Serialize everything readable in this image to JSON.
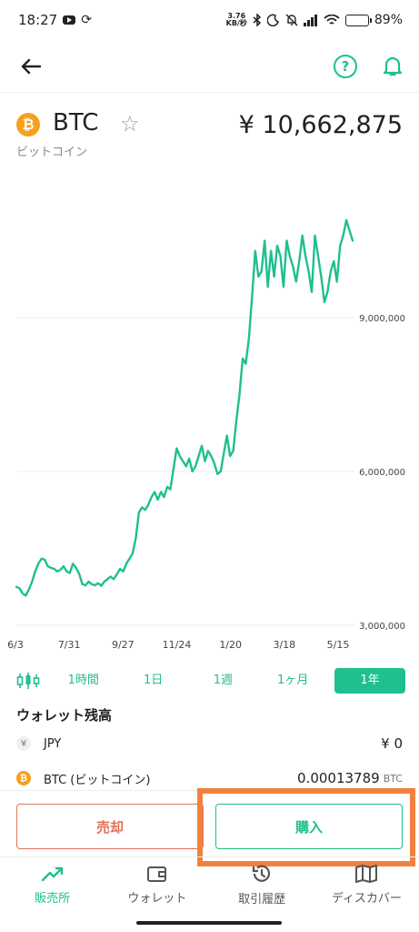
{
  "status_bar": {
    "time": "18:27",
    "net_speed_value": "3.76",
    "net_speed_unit": "KB/秒",
    "battery": "89%",
    "battery_level": 0.89
  },
  "header": {
    "back_icon": "arrow-left-icon",
    "help_icon": "help-circle-icon",
    "help_glyph": "?",
    "bell_icon": "bell-icon"
  },
  "coin": {
    "logo_glyph": "₿",
    "symbol": "BTC",
    "name": "ビットコイン",
    "price": "¥ 10,662,875",
    "star_glyph": "☆"
  },
  "chart_data": {
    "type": "line",
    "x_tick_labels": [
      "6/3",
      "7/31",
      "9/27",
      "11/24",
      "1/20",
      "3/18",
      "5/15"
    ],
    "y_tick_values": [
      3000000,
      6000000,
      9000000
    ],
    "y_tick_labels": [
      "3,000,000",
      "6,000,000",
      "9,000,000"
    ],
    "ylim": [
      3000000,
      11200000
    ],
    "line_color": "#1fbf8f",
    "grid": true,
    "values": [
      3750000,
      3720000,
      3620000,
      3580000,
      3700000,
      3850000,
      4050000,
      4200000,
      4300000,
      4280000,
      4150000,
      4120000,
      4100000,
      4050000,
      4080000,
      4150000,
      4050000,
      4020000,
      4200000,
      4120000,
      4000000,
      3800000,
      3780000,
      3850000,
      3800000,
      3780000,
      3820000,
      3770000,
      3850000,
      3900000,
      3950000,
      3900000,
      4000000,
      4100000,
      4050000,
      4200000,
      4300000,
      4400000,
      4700000,
      5200000,
      5300000,
      5250000,
      5350000,
      5500000,
      5600000,
      5450000,
      5600000,
      5500000,
      5700000,
      5650000,
      6050000,
      6450000,
      6300000,
      6200000,
      6100000,
      6250000,
      6000000,
      6100000,
      6300000,
      6500000,
      6200000,
      6400000,
      6300000,
      6150000,
      5950000,
      6000000,
      6350000,
      6700000,
      6300000,
      6400000,
      7000000,
      7500000,
      8200000,
      8100000,
      8600000,
      9400000,
      10300000,
      9800000,
      9900000,
      10500000,
      9600000,
      10300000,
      9800000,
      10400000,
      10200000,
      9600000,
      10500000,
      10200000,
      10000000,
      9700000,
      10100000,
      10600000,
      10200000,
      9900000,
      9500000,
      10600000,
      10200000,
      9800000,
      9300000,
      9500000,
      9900000,
      10100000,
      9700000,
      10400000,
      10600000,
      10900000,
      10700000,
      10500000
    ]
  },
  "periods": {
    "candle_icon": "candlestick-icon",
    "items": [
      "1時間",
      "1日",
      "1週",
      "1ヶ月",
      "1年"
    ],
    "active_index": 4
  },
  "wallet": {
    "title": "ウォレット残高",
    "rows": [
      {
        "icon_glyph": "¥",
        "label": "JPY",
        "value": "¥ 0",
        "unit": ""
      },
      {
        "icon_glyph": "₿",
        "label": "BTC (ビットコイン)",
        "value": "0.00013789",
        "unit": "BTC"
      }
    ]
  },
  "actions": {
    "sell_label": "売却",
    "buy_label": "購入",
    "highlight_color": "#f2813f",
    "sell_color": "#e0735a"
  },
  "bottom_nav": {
    "items": [
      {
        "label": "販売所",
        "icon": "trending-up-icon"
      },
      {
        "label": "ウォレット",
        "icon": "wallet-icon"
      },
      {
        "label": "取引履歴",
        "icon": "history-icon"
      },
      {
        "label": "ディスカバー",
        "icon": "book-map-icon"
      }
    ],
    "active_index": 0
  },
  "accent_color": "#1fbf8f"
}
